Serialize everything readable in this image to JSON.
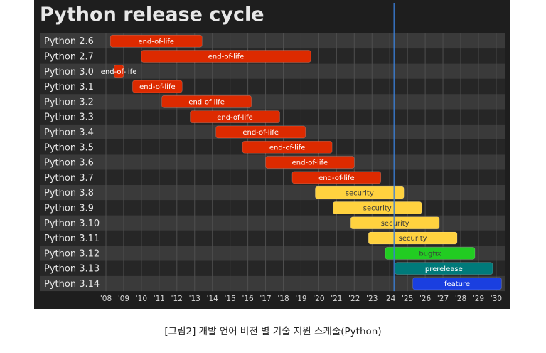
{
  "caption": "[그림2] 개발 언어 버전 별 기술 지원 스케줄(Python)",
  "chart_data": {
    "type": "bar",
    "orientation": "horizontal-timeline",
    "title": "Python release cycle",
    "xlabel": "",
    "ylabel": "",
    "xlim": [
      2007.8,
      2030.4
    ],
    "xticks": [
      "'08",
      "'09",
      "'10",
      "'11",
      "'12",
      "'13",
      "'14",
      "'15",
      "'16",
      "'17",
      "'18",
      "'19",
      "'20",
      "'21",
      "'22",
      "'23",
      "'24",
      "'25",
      "'26",
      "'27",
      "'28",
      "'29",
      "'30"
    ],
    "today": 2024.24,
    "grid": true,
    "legend": "none",
    "colors": {
      "end-of-life": "#dd2a00",
      "security": "#ffd23f",
      "bugfix": "#22cc22",
      "prerelease": "#007a7a",
      "feature": "#1a3fe0",
      "today_line": "#3a7fd8"
    },
    "releases": [
      {
        "version": "Python 2.6",
        "start": 2008.25,
        "end": 2013.42,
        "status": "end-of-life"
      },
      {
        "version": "Python 2.7",
        "start": 2010.0,
        "end": 2019.55,
        "status": "end-of-life"
      },
      {
        "version": "Python 3.0",
        "start": 2008.45,
        "end": 2009.0,
        "status": "end-of-life"
      },
      {
        "version": "Python 3.1",
        "start": 2009.5,
        "end": 2012.3,
        "status": "end-of-life"
      },
      {
        "version": "Python 3.2",
        "start": 2011.15,
        "end": 2016.2,
        "status": "end-of-life"
      },
      {
        "version": "Python 3.3",
        "start": 2012.75,
        "end": 2017.8,
        "status": "end-of-life"
      },
      {
        "version": "Python 3.4",
        "start": 2014.2,
        "end": 2019.25,
        "status": "end-of-life"
      },
      {
        "version": "Python 3.5",
        "start": 2015.7,
        "end": 2020.75,
        "status": "end-of-life"
      },
      {
        "version": "Python 3.6",
        "start": 2017.0,
        "end": 2022.0,
        "status": "end-of-life"
      },
      {
        "version": "Python 3.7",
        "start": 2018.5,
        "end": 2023.5,
        "status": "end-of-life"
      },
      {
        "version": "Python 3.8",
        "start": 2019.8,
        "end": 2024.8,
        "status": "security"
      },
      {
        "version": "Python 3.9",
        "start": 2020.8,
        "end": 2025.8,
        "status": "security"
      },
      {
        "version": "Python 3.10",
        "start": 2021.8,
        "end": 2026.8,
        "status": "security"
      },
      {
        "version": "Python 3.11",
        "start": 2022.8,
        "end": 2027.8,
        "status": "security"
      },
      {
        "version": "Python 3.12",
        "start": 2023.75,
        "end": 2028.8,
        "status": "bugfix"
      },
      {
        "version": "Python 3.13",
        "start": 2024.3,
        "end": 2029.8,
        "status": "prerelease"
      },
      {
        "version": "Python 3.14",
        "start": 2025.3,
        "end": 2030.3,
        "status": "feature"
      }
    ]
  }
}
